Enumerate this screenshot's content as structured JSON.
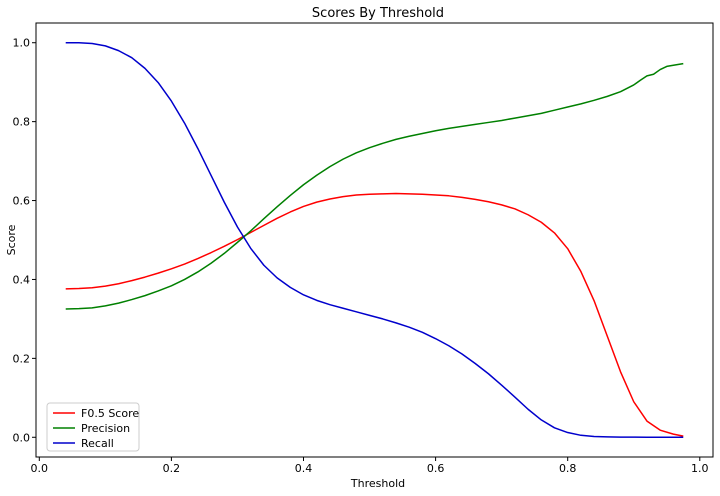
{
  "chart_data": {
    "type": "line",
    "title": "Scores By Threshold",
    "xlabel": "Threshold",
    "ylabel": "Score",
    "xlim": [
      -0.005,
      1.02
    ],
    "ylim": [
      -0.05,
      1.05
    ],
    "xticks": [
      0.0,
      0.2,
      0.4,
      0.6,
      0.8,
      1.0
    ],
    "xtick_labels": [
      "0.0",
      "0.2",
      "0.4",
      "0.6",
      "0.8",
      "1.0"
    ],
    "yticks": [
      0.0,
      0.2,
      0.4,
      0.6,
      0.8,
      1.0
    ],
    "ytick_labels": [
      "0.0",
      "0.2",
      "0.4",
      "0.6",
      "0.8",
      "1.0"
    ],
    "grid": false,
    "legend_position": "bottom-left",
    "series": [
      {
        "name": "F0.5 Score",
        "color": "#ff0000",
        "x": [
          0.04,
          0.06,
          0.08,
          0.1,
          0.12,
          0.14,
          0.16,
          0.18,
          0.2,
          0.22,
          0.24,
          0.26,
          0.28,
          0.3,
          0.32,
          0.34,
          0.36,
          0.38,
          0.4,
          0.42,
          0.44,
          0.46,
          0.48,
          0.5,
          0.52,
          0.54,
          0.56,
          0.58,
          0.6,
          0.62,
          0.64,
          0.66,
          0.68,
          0.7,
          0.72,
          0.74,
          0.76,
          0.78,
          0.8,
          0.82,
          0.84,
          0.86,
          0.88,
          0.9,
          0.92,
          0.94,
          0.96,
          0.975
        ],
        "values": [
          0.376,
          0.377,
          0.379,
          0.383,
          0.389,
          0.397,
          0.406,
          0.416,
          0.427,
          0.439,
          0.453,
          0.468,
          0.484,
          0.501,
          0.519,
          0.537,
          0.555,
          0.571,
          0.585,
          0.596,
          0.604,
          0.61,
          0.614,
          0.616,
          0.617,
          0.618,
          0.617,
          0.616,
          0.614,
          0.612,
          0.608,
          0.603,
          0.597,
          0.589,
          0.579,
          0.564,
          0.545,
          0.518,
          0.478,
          0.42,
          0.346,
          0.256,
          0.166,
          0.09,
          0.041,
          0.018,
          0.008,
          0.003
        ]
      },
      {
        "name": "Precision",
        "color": "#008000",
        "x": [
          0.04,
          0.06,
          0.08,
          0.1,
          0.12,
          0.14,
          0.16,
          0.18,
          0.2,
          0.22,
          0.24,
          0.26,
          0.28,
          0.3,
          0.32,
          0.34,
          0.36,
          0.38,
          0.4,
          0.42,
          0.44,
          0.46,
          0.48,
          0.5,
          0.52,
          0.54,
          0.56,
          0.58,
          0.6,
          0.62,
          0.64,
          0.66,
          0.68,
          0.7,
          0.72,
          0.74,
          0.76,
          0.78,
          0.8,
          0.82,
          0.84,
          0.86,
          0.88,
          0.9,
          0.91,
          0.92,
          0.93,
          0.94,
          0.95,
          0.96,
          0.975
        ],
        "values": [
          0.325,
          0.326,
          0.328,
          0.333,
          0.34,
          0.349,
          0.359,
          0.371,
          0.384,
          0.4,
          0.419,
          0.441,
          0.466,
          0.494,
          0.523,
          0.554,
          0.584,
          0.613,
          0.64,
          0.664,
          0.686,
          0.705,
          0.721,
          0.734,
          0.745,
          0.755,
          0.763,
          0.77,
          0.777,
          0.783,
          0.788,
          0.793,
          0.798,
          0.803,
          0.809,
          0.815,
          0.821,
          0.829,
          0.837,
          0.845,
          0.854,
          0.864,
          0.876,
          0.893,
          0.905,
          0.916,
          0.92,
          0.932,
          0.94,
          0.943,
          0.947
        ]
      },
      {
        "name": "Recall",
        "color": "#0000cc",
        "x": [
          0.04,
          0.06,
          0.08,
          0.1,
          0.12,
          0.14,
          0.16,
          0.18,
          0.2,
          0.22,
          0.24,
          0.26,
          0.28,
          0.3,
          0.32,
          0.34,
          0.36,
          0.38,
          0.4,
          0.42,
          0.44,
          0.46,
          0.48,
          0.5,
          0.52,
          0.54,
          0.56,
          0.58,
          0.6,
          0.62,
          0.64,
          0.66,
          0.68,
          0.7,
          0.72,
          0.74,
          0.76,
          0.78,
          0.8,
          0.82,
          0.84,
          0.86,
          0.88,
          0.9,
          0.92,
          0.94,
          0.96,
          0.975
        ],
        "values": [
          1.0,
          1.0,
          0.998,
          0.992,
          0.98,
          0.962,
          0.935,
          0.899,
          0.852,
          0.796,
          0.732,
          0.664,
          0.596,
          0.533,
          0.479,
          0.436,
          0.404,
          0.38,
          0.361,
          0.347,
          0.336,
          0.327,
          0.318,
          0.309,
          0.3,
          0.29,
          0.279,
          0.266,
          0.25,
          0.232,
          0.211,
          0.187,
          0.161,
          0.132,
          0.102,
          0.071,
          0.044,
          0.024,
          0.012,
          0.005,
          0.002,
          0.001,
          0.0005,
          0.0003,
          0.0002,
          0.0001,
          0.0001,
          0.0
        ],
        "note_unused": ""
      }
    ]
  }
}
